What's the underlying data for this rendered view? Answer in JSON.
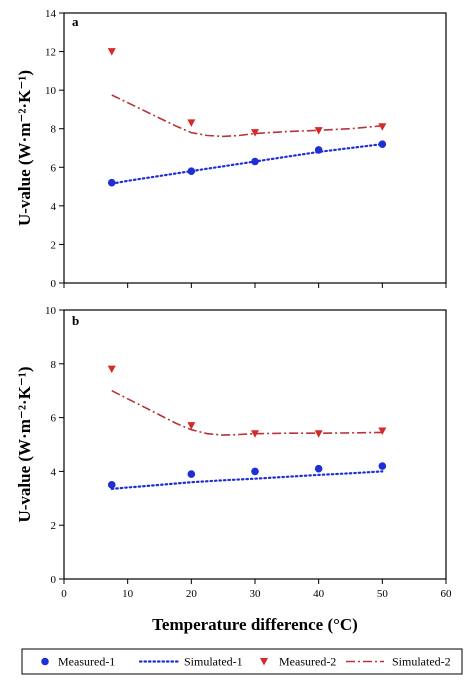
{
  "ylabel": "U-value (W·m⁻²·K⁻¹)",
  "xlabel": "Temperature difference (°C)",
  "x_ticks": [
    "0",
    "10",
    "20",
    "30",
    "40",
    "50",
    "60"
  ],
  "legend": [
    {
      "label": "Measured-1",
      "kind": "marker-circle",
      "color": "#1f2fd6"
    },
    {
      "label": "Simulated-1",
      "kind": "dotted",
      "color": "#1f2fd6"
    },
    {
      "label": "Measured-2",
      "kind": "marker-triangle-down",
      "color": "#d42a2a"
    },
    {
      "label": "Simulated-2",
      "kind": "dashdot",
      "color": "#b8333a"
    }
  ],
  "chart_data": [
    {
      "type": "scatter",
      "panel": "a",
      "xlim": [
        0,
        60
      ],
      "ylim": [
        0,
        14
      ],
      "y_ticks": [
        "0",
        "2",
        "4",
        "6",
        "8",
        "10",
        "12",
        "14"
      ],
      "grid": false,
      "series": [
        {
          "name": "Measured-1",
          "kind": "marker-circle",
          "color": "#1f2fd6",
          "x": [
            7.5,
            20,
            30,
            40,
            50
          ],
          "y": [
            5.2,
            5.8,
            6.3,
            6.9,
            7.2
          ]
        },
        {
          "name": "Simulated-1",
          "kind": "dotted",
          "color": "#1f2fd6",
          "x": [
            7.5,
            10,
            15,
            20,
            25,
            30,
            35,
            40,
            45,
            50
          ],
          "y": [
            5.15,
            5.3,
            5.55,
            5.8,
            6.05,
            6.3,
            6.55,
            6.8,
            7.0,
            7.2
          ]
        },
        {
          "name": "Measured-2",
          "kind": "marker-triangle-down",
          "color": "#d42a2a",
          "x": [
            7.5,
            20,
            30,
            40,
            50
          ],
          "y": [
            12.0,
            8.3,
            7.8,
            7.9,
            8.1
          ]
        },
        {
          "name": "Simulated-2",
          "kind": "dashdot",
          "color": "#b8333a",
          "x": [
            7.5,
            10,
            12.5,
            15,
            17.5,
            20,
            22.5,
            25,
            27.5,
            30,
            35,
            40,
            45,
            50
          ],
          "y": [
            9.75,
            9.35,
            8.95,
            8.55,
            8.15,
            7.8,
            7.65,
            7.6,
            7.65,
            7.75,
            7.85,
            7.92,
            8.0,
            8.15
          ]
        }
      ]
    },
    {
      "type": "scatter",
      "panel": "b",
      "xlim": [
        0,
        60
      ],
      "ylim": [
        0,
        10
      ],
      "y_ticks": [
        "0",
        "2",
        "4",
        "6",
        "8",
        "10"
      ],
      "grid": false,
      "series": [
        {
          "name": "Measured-1",
          "kind": "marker-circle",
          "color": "#1f2fd6",
          "x": [
            7.5,
            20,
            30,
            40,
            50
          ],
          "y": [
            3.5,
            3.9,
            4.0,
            4.1,
            4.2
          ]
        },
        {
          "name": "Simulated-1",
          "kind": "dotted",
          "color": "#1f2fd6",
          "x": [
            7.5,
            10,
            15,
            20,
            25,
            30,
            35,
            40,
            45,
            50
          ],
          "y": [
            3.35,
            3.4,
            3.5,
            3.6,
            3.67,
            3.73,
            3.8,
            3.87,
            3.93,
            4.0
          ]
        },
        {
          "name": "Measured-2",
          "kind": "marker-triangle-down",
          "color": "#d42a2a",
          "x": [
            7.5,
            20,
            30,
            40,
            50
          ],
          "y": [
            7.8,
            5.7,
            5.4,
            5.4,
            5.5
          ]
        },
        {
          "name": "Simulated-2",
          "kind": "dashdot",
          "color": "#b8333a",
          "x": [
            7.5,
            10,
            12.5,
            15,
            17.5,
            20,
            22.5,
            25,
            27.5,
            30,
            35,
            40,
            45,
            50
          ],
          "y": [
            7.0,
            6.7,
            6.4,
            6.1,
            5.8,
            5.55,
            5.4,
            5.35,
            5.37,
            5.4,
            5.42,
            5.42,
            5.43,
            5.45
          ]
        }
      ]
    }
  ]
}
